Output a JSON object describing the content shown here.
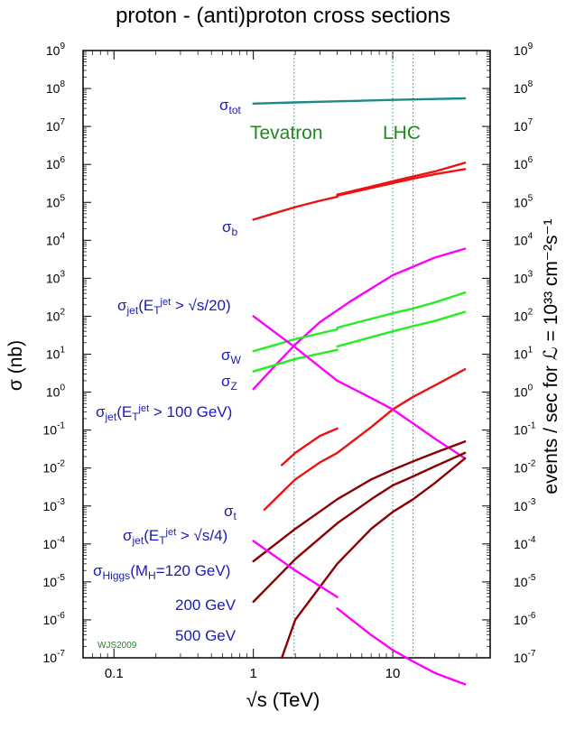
{
  "chart_data": {
    "type": "line",
    "title": "proton - (anti)proton cross sections",
    "xlabel": "√s (TeV)",
    "ylabel": "σ (nb)",
    "ylabel_right": "events / sec for ℒ = 10³³ cm⁻²s⁻¹",
    "xscale": "log",
    "yscale": "log",
    "xlim": [
      0.06,
      50
    ],
    "ylim": [
      1e-07,
      1000000000.0
    ],
    "x_ticks": [
      "0.1",
      "1",
      "10"
    ],
    "y_ticks": [
      "10^-7",
      "10^-6",
      "10^-5",
      "10^-4",
      "10^-3",
      "10^-2",
      "10^-1",
      "10^0",
      "10^1",
      "10^2",
      "10^3",
      "10^4",
      "10^5",
      "10^6",
      "10^7",
      "10^8",
      "10^9"
    ],
    "markers": [
      {
        "label": "Tevatron",
        "x": 1.96
      },
      {
        "label": "LHC",
        "x": 10
      },
      {
        "label": "",
        "x": 14
      }
    ],
    "credit": "WJS2009",
    "series": [
      {
        "name": "σtot",
        "color": "#1a8a8a",
        "x": [
          1,
          2,
          5,
          10,
          20,
          33
        ],
        "y": [
          40000000.0,
          43000000.0,
          47000000.0,
          50000000.0,
          53000000.0,
          55000000.0
        ]
      },
      {
        "name": "σb (pp̄)",
        "color": "#ee1111",
        "x": [
          1,
          1.5,
          2,
          3,
          4
        ],
        "y": [
          35000.0,
          55000.0,
          75000.0,
          110000.0,
          140000.0
        ]
      },
      {
        "name": "σb (pp, upper)",
        "color": "#ee1111",
        "x": [
          4,
          7,
          10,
          14,
          20,
          33
        ],
        "y": [
          160000.0,
          260000.0,
          360000.0,
          480000.0,
          650000.0,
          1100000.0
        ]
      },
      {
        "name": "σb (pp, lower)",
        "color": "#ee1111",
        "x": [
          4,
          7,
          10,
          14,
          20,
          33
        ],
        "y": [
          150000.0,
          240000.0,
          320000.0,
          420000.0,
          550000.0,
          750000.0
        ]
      },
      {
        "name": "σjet(ETjet > √s/20)",
        "color": "#ff00ff",
        "x": [
          1,
          1.5,
          2,
          3,
          5,
          10,
          20,
          33
        ],
        "y": [
          1.2,
          6,
          18,
          70,
          250,
          1200,
          3500,
          6000
        ]
      },
      {
        "name": "σW (pp̄)",
        "color": "#22ee22",
        "x": [
          1,
          2,
          4
        ],
        "y": [
          12,
          25,
          45
        ]
      },
      {
        "name": "σW (pp)",
        "color": "#22ee22",
        "x": [
          4,
          7,
          10,
          14,
          20,
          33
        ],
        "y": [
          50,
          85,
          120,
          160,
          230,
          420
        ]
      },
      {
        "name": "σZ (pp̄)",
        "color": "#22ee22",
        "x": [
          1,
          2,
          4
        ],
        "y": [
          3.5,
          7.5,
          13
        ]
      },
      {
        "name": "σZ (pp)",
        "color": "#22ee22",
        "x": [
          4,
          7,
          10,
          14,
          20,
          33
        ],
        "y": [
          16,
          28,
          40,
          55,
          75,
          130
        ]
      },
      {
        "name": "σjet(ETjet > 100 GeV)",
        "color": "#ee1111",
        "x": [
          1.6,
          2,
          3,
          4
        ],
        "y": [
          0.012,
          0.025,
          0.07,
          0.11
        ]
      },
      {
        "name": "σjet(ETjet > 100 GeV) pp",
        "color": "#ee1111",
        "x": [
          4,
          7,
          10,
          14,
          20,
          33
        ],
        "y": [
          0.025,
          0.12,
          0.35,
          0.75,
          1.5,
          4
        ]
      },
      {
        "name": "σjet(ETjet > √s/4)",
        "color": "#ff00ff",
        "x": [
          1,
          2,
          4
        ],
        "y": [
          100,
          15,
          2
        ]
      },
      {
        "name": "σjet(ETjet > √s/4) pp",
        "color": "#ff00ff",
        "x": [
          4,
          7,
          10,
          14,
          20,
          33
        ],
        "y": [
          2,
          0.7,
          0.35,
          0.15,
          0.06,
          0.018
        ]
      },
      {
        "name": "σt",
        "color": "#ee1111",
        "x": [
          1.2,
          1.5,
          2,
          3,
          4
        ],
        "y": [
          0.0008,
          0.0018,
          0.005,
          0.014,
          0.025
        ]
      },
      {
        "name": "σHiggs(MH=120 GeV)",
        "color": "#8b0000",
        "x": [
          1,
          2,
          4,
          7,
          10,
          14,
          20,
          33
        ],
        "y": [
          3.5e-05,
          0.00025,
          0.0015,
          0.005,
          0.009,
          0.015,
          0.025,
          0.05
        ]
      },
      {
        "name": "200 GeV",
        "color": "#8b0000",
        "x": [
          1,
          2,
          4,
          7,
          10,
          14,
          20,
          33
        ],
        "y": [
          3e-06,
          4e-05,
          0.00035,
          0.0015,
          0.0035,
          0.006,
          0.011,
          0.025
        ]
      },
      {
        "name": "500 GeV",
        "color": "#8b0000",
        "x": [
          1.6,
          2,
          4,
          7,
          10,
          14,
          20,
          33
        ],
        "y": [
          1e-07,
          1e-06,
          3e-05,
          0.00025,
          0.0007,
          0.0015,
          0.004,
          0.018
        ]
      },
      {
        "name": "σjet(ETjet > √s/4) low",
        "color": "#ff00ff",
        "x": [
          1,
          2,
          4
        ],
        "y": [
          0.00012,
          2e-05,
          4e-06
        ]
      },
      {
        "name": "σjet(ETjet > √s/4) low pp",
        "color": "#ff00ff",
        "x": [
          4,
          7,
          10,
          14,
          20,
          33
        ],
        "y": [
          2e-06,
          4e-07,
          1.6e-07,
          8e-08,
          4e-08,
          2e-08
        ]
      }
    ]
  },
  "annotations": {
    "sigma": "σ",
    "tot": "tot",
    "b": "b",
    "jet": "jet",
    "W": "W",
    "Z": "Z",
    "t": "t",
    "Higgs": "Higgs",
    "E": "E",
    "T": "T",
    "jet_sup": "jet",
    "cut1": " > √s/20)",
    "cut2": " > 100 GeV)",
    "cut3": " > √s/4)",
    "open": "(",
    "higgs_mass": "(M",
    "H": "H",
    "higgs_rest": "=120 GeV)",
    "g200": "200 GeV",
    "g500": "500 GeV",
    "tevatron": "Tevatron",
    "lhc": "LHC"
  }
}
